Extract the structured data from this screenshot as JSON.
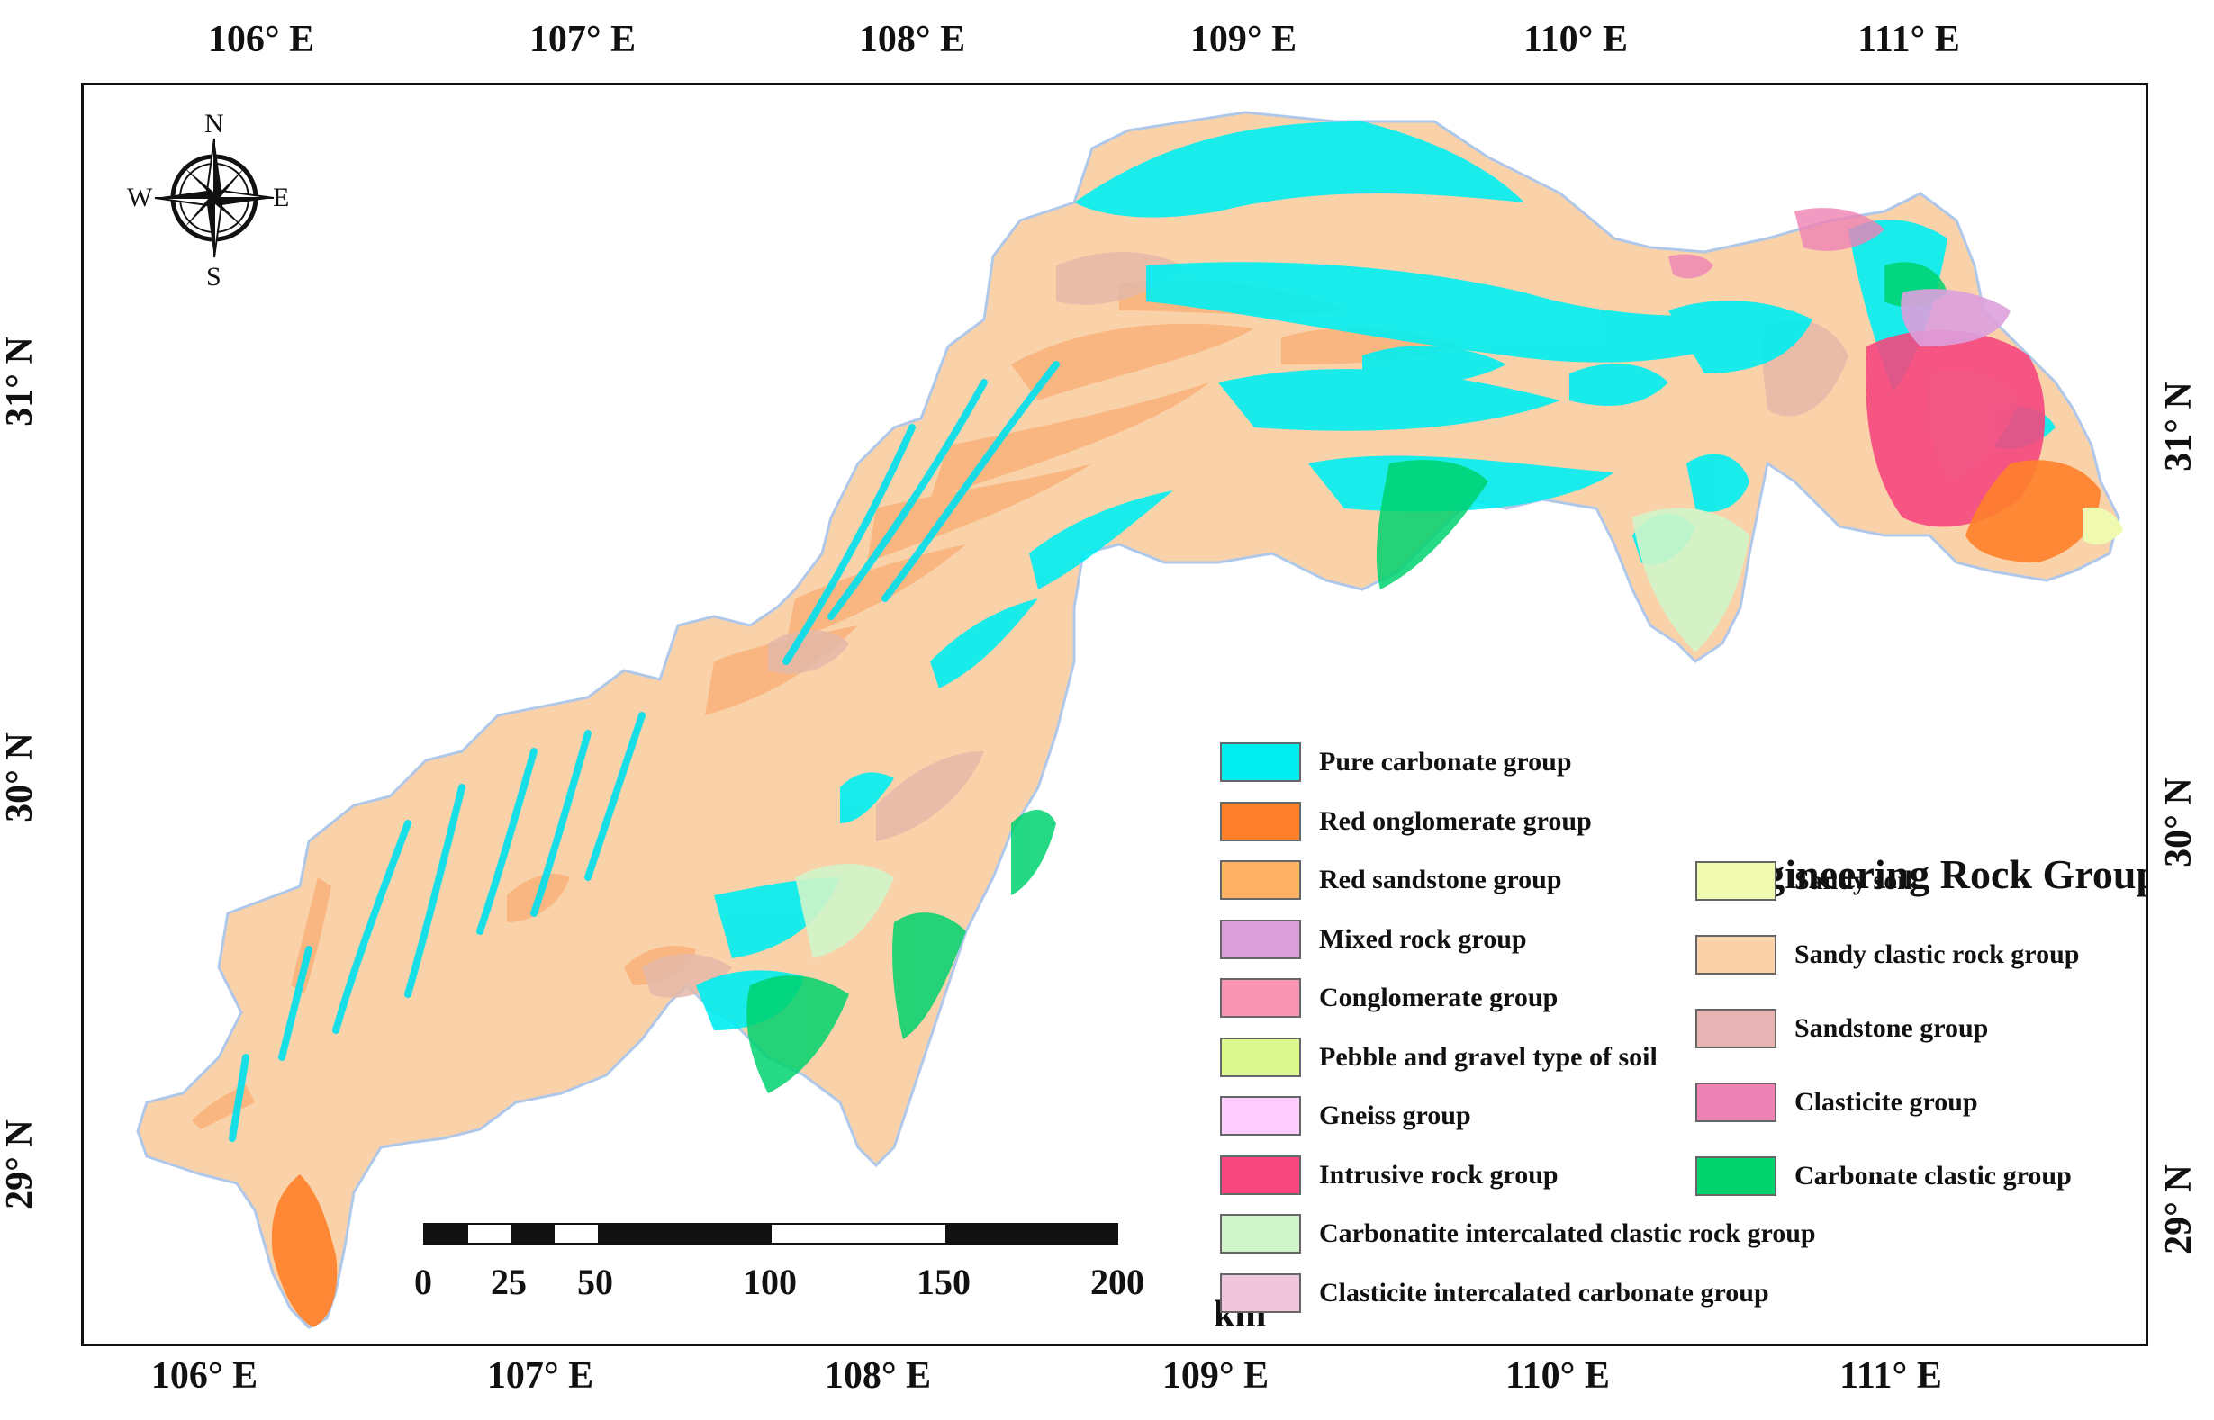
{
  "axes": {
    "top_ticks": [
      "106° E",
      "107° E",
      "108° E",
      "109° E",
      "110° E",
      "111° E"
    ],
    "bottom_ticks": [
      "106° E",
      "107° E",
      "108° E",
      "109° E",
      "110° E",
      "111° E"
    ],
    "left_ticks": [
      "31° N",
      "30° N",
      "29° N"
    ],
    "right_ticks": [
      "31° N",
      "30° N",
      "29° N"
    ]
  },
  "compass": {
    "north": "N",
    "south": "S",
    "east": "E",
    "west": "W"
  },
  "legend": {
    "title": "Engineering Rock Group",
    "column1": [
      {
        "label": "Pure carbonate group",
        "color": "#00EEF2"
      },
      {
        "label": "Red onglomerate group",
        "color": "#FF7F2A"
      },
      {
        "label": "Red sandstone group",
        "color": "#FFB266"
      },
      {
        "label": "Mixed rock group",
        "color": "#DDA0DD"
      },
      {
        "label": "Conglomerate group",
        "color": "#F896B4"
      },
      {
        "label": "Pebble and gravel type of soil",
        "color": "#DDF78F"
      },
      {
        "label": "Gneiss group",
        "color": "#FFCCFF"
      },
      {
        "label": "Intrusive rock group",
        "color": "#F5467E"
      },
      {
        "label": "Carbonatite intercalated clastic rock group",
        "color": "#CFF5C9"
      },
      {
        "label": "Clasticite intercalated carbonate group",
        "color": "#EFC6DC"
      }
    ],
    "column2": [
      {
        "label": "Sandy soil",
        "color": "#EFFAB0"
      },
      {
        "label": "Sandy clastic rock group",
        "color": "#FAD2AA"
      },
      {
        "label": "Sandstone group",
        "color": "#E6B4B4"
      },
      {
        "label": "Clasticite group",
        "color": "#EE82B4"
      },
      {
        "label": "Carbonate clastic group",
        "color": "#00D26E"
      }
    ]
  },
  "scale_bar": {
    "unit": "km",
    "labels": [
      "0",
      "25",
      "50",
      "100",
      "150",
      "200"
    ]
  }
}
